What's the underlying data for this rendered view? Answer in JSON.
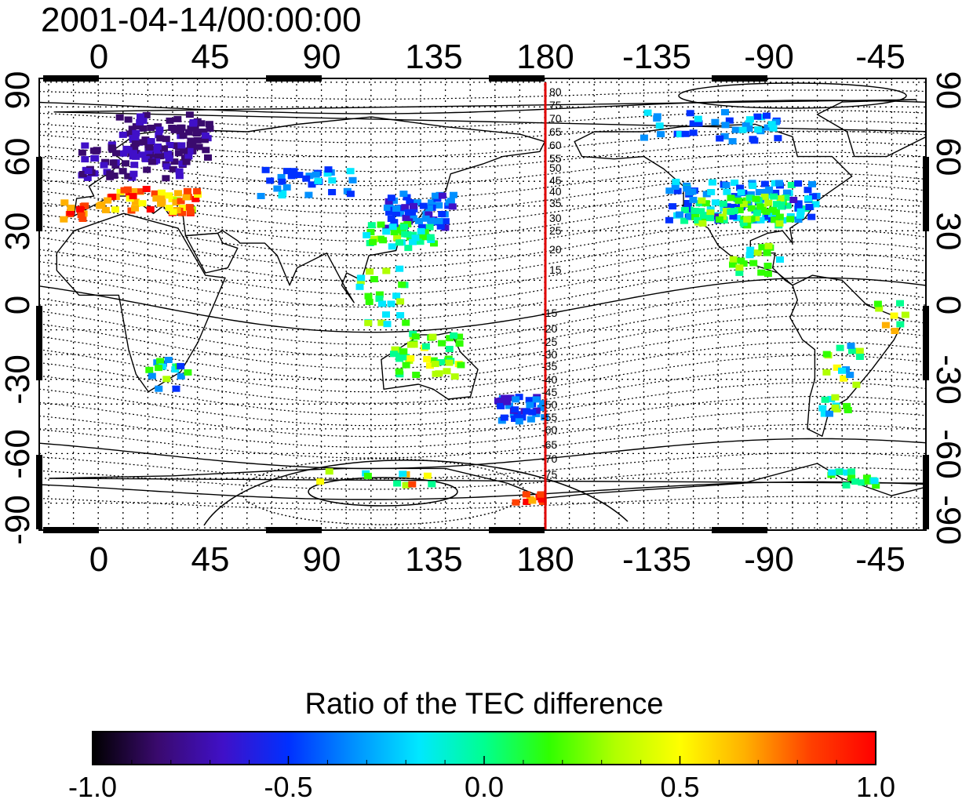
{
  "title": "2001-04-14/00:00:00",
  "map": {
    "lon_ticks": [
      "0",
      "45",
      "90",
      "135",
      "180",
      "-135",
      "-90",
      "-45"
    ],
    "lat_ticks": [
      "90",
      "60",
      "30",
      "0",
      "-30",
      "-60",
      "-90"
    ],
    "contour_labels_north": [
      "80",
      "75",
      "70",
      "65",
      "60",
      "55",
      "50",
      "45",
      "40",
      "35",
      "30",
      "25",
      "20",
      "15"
    ],
    "contour_labels_south": [
      "15",
      "20",
      "25",
      "30",
      "35",
      "40",
      "45",
      "50",
      "55",
      "60",
      "65",
      "70",
      "75"
    ],
    "marker_longitude": "180",
    "marker_color": "#e00000"
  },
  "colorbar": {
    "title": "Ratio of the TEC difference",
    "ticks": [
      "-1.0",
      "-0.5",
      "0.0",
      "0.5",
      "1.0"
    ],
    "range": [
      -1.0,
      1.0
    ],
    "colors": [
      "#000000",
      "#3a0a6e",
      "#4010c8",
      "#0030ff",
      "#0090ff",
      "#00e8ff",
      "#00ff90",
      "#30ff00",
      "#b0ff00",
      "#ffff00",
      "#ffb000",
      "#ff4000",
      "#ff0000"
    ]
  }
}
